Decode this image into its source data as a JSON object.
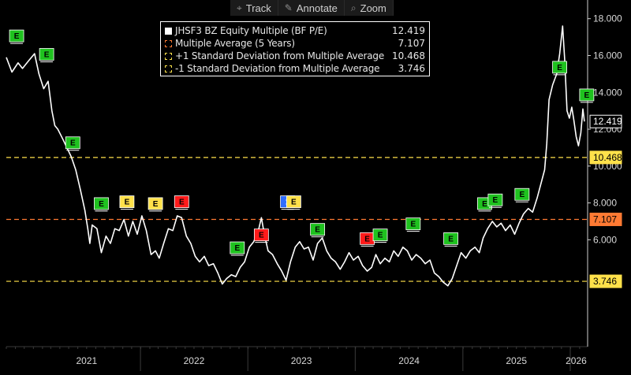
{
  "toolbar": {
    "track_label": "Track",
    "annotate_label": "Annotate",
    "zoom_label": "Zoom",
    "track_icon": "crosshair-icon",
    "annotate_icon": "pencil-icon",
    "zoom_icon": "magnifier-icon"
  },
  "legend": {
    "entries": [
      {
        "label": "JHSF3 BZ Equity Multiple (BF P/E)",
        "value": "12.419",
        "color": "#ffffff",
        "style": "filled"
      },
      {
        "label": "Multiple Average (5 Years)",
        "value": "7.107",
        "color": "#ff7a33",
        "style": "outline"
      },
      {
        "label": "+1 Standard Deviation from Multiple Average",
        "value": "10.468",
        "color": "#ffe14a",
        "style": "outline"
      },
      {
        "label": "-1 Standard Deviation from Multiple Average",
        "value": "3.746",
        "color": "#ffe14a",
        "style": "outline"
      }
    ]
  },
  "chart_data": {
    "type": "line",
    "x_start": "2020-10-01",
    "x_end": "2026-02-28",
    "ylim": [
      0.2,
      18.8
    ],
    "ytick_values": [
      6,
      8,
      10,
      12,
      14,
      16,
      18
    ],
    "ytick_labels": [
      "6.000",
      "8.000",
      "10.000",
      "12.000",
      "14.000",
      "16.000",
      "18.000"
    ],
    "x_labels": [
      {
        "label": "2021",
        "date": "2021-07-01"
      },
      {
        "label": "2022",
        "date": "2022-07-01"
      },
      {
        "label": "2023",
        "date": "2023-07-01"
      },
      {
        "label": "2024",
        "date": "2024-07-01"
      },
      {
        "label": "2025",
        "date": "2025-07-01"
      },
      {
        "label": "2026",
        "date": "2026-01-20"
      }
    ],
    "year_separators": [
      "2021-12-31",
      "2022-12-31",
      "2023-12-31",
      "2024-12-31",
      "2025-12-31"
    ],
    "series": [
      {
        "name": "JHSF3 BZ Equity Multiple (BF P/E)",
        "color": "#ffffff",
        "points": [
          [
            "2020-10-01",
            15.9
          ],
          [
            "2020-10-20",
            15.1
          ],
          [
            "2020-11-10",
            15.6
          ],
          [
            "2020-11-25",
            15.3
          ],
          [
            "2020-12-15",
            15.7
          ],
          [
            "2021-01-05",
            16.1
          ],
          [
            "2021-01-20",
            15.0
          ],
          [
            "2021-02-05",
            14.2
          ],
          [
            "2021-02-20",
            14.6
          ],
          [
            "2021-03-05",
            13.0
          ],
          [
            "2021-03-15",
            12.2
          ],
          [
            "2021-03-25",
            12.0
          ],
          [
            "2021-04-10",
            11.5
          ],
          [
            "2021-04-25",
            11.0
          ],
          [
            "2021-05-10",
            10.5
          ],
          [
            "2021-05-25",
            9.8
          ],
          [
            "2021-06-10",
            8.7
          ],
          [
            "2021-06-25",
            7.6
          ],
          [
            "2021-07-05",
            6.6
          ],
          [
            "2021-07-12",
            5.8
          ],
          [
            "2021-07-20",
            6.8
          ],
          [
            "2021-08-05",
            6.6
          ],
          [
            "2021-08-20",
            5.3
          ],
          [
            "2021-09-05",
            6.2
          ],
          [
            "2021-09-20",
            5.8
          ],
          [
            "2021-10-05",
            6.6
          ],
          [
            "2021-10-20",
            6.5
          ],
          [
            "2021-11-05",
            7.1
          ],
          [
            "2021-11-20",
            6.2
          ],
          [
            "2021-12-05",
            7.0
          ],
          [
            "2021-12-20",
            6.3
          ],
          [
            "2022-01-05",
            7.3
          ],
          [
            "2022-01-20",
            6.5
          ],
          [
            "2022-02-05",
            5.2
          ],
          [
            "2022-02-20",
            5.4
          ],
          [
            "2022-03-05",
            5.0
          ],
          [
            "2022-03-20",
            5.8
          ],
          [
            "2022-04-05",
            6.6
          ],
          [
            "2022-04-20",
            6.5
          ],
          [
            "2022-05-05",
            7.3
          ],
          [
            "2022-05-20",
            7.2
          ],
          [
            "2022-06-05",
            6.2
          ],
          [
            "2022-06-20",
            5.8
          ],
          [
            "2022-07-05",
            5.1
          ],
          [
            "2022-07-20",
            4.8
          ],
          [
            "2022-08-05",
            5.1
          ],
          [
            "2022-08-20",
            4.6
          ],
          [
            "2022-09-05",
            4.7
          ],
          [
            "2022-09-20",
            4.2
          ],
          [
            "2022-10-05",
            3.6
          ],
          [
            "2022-10-20",
            3.9
          ],
          [
            "2022-11-05",
            4.1
          ],
          [
            "2022-11-20",
            4.0
          ],
          [
            "2022-12-05",
            4.5
          ],
          [
            "2022-12-20",
            4.8
          ],
          [
            "2023-01-05",
            5.6
          ],
          [
            "2023-01-20",
            5.9
          ],
          [
            "2023-02-05",
            6.5
          ],
          [
            "2023-02-15",
            7.2
          ],
          [
            "2023-02-25",
            6.3
          ],
          [
            "2023-03-10",
            5.4
          ],
          [
            "2023-03-25",
            5.2
          ],
          [
            "2023-04-10",
            4.7
          ],
          [
            "2023-04-25",
            4.3
          ],
          [
            "2023-05-10",
            3.8
          ],
          [
            "2023-05-25",
            4.8
          ],
          [
            "2023-06-10",
            5.6
          ],
          [
            "2023-06-25",
            5.9
          ],
          [
            "2023-07-10",
            5.5
          ],
          [
            "2023-07-25",
            5.6
          ],
          [
            "2023-08-10",
            4.9
          ],
          [
            "2023-08-25",
            5.8
          ],
          [
            "2023-09-10",
            6.1
          ],
          [
            "2023-09-25",
            5.4
          ],
          [
            "2023-10-10",
            5.0
          ],
          [
            "2023-10-25",
            4.8
          ],
          [
            "2023-11-10",
            4.4
          ],
          [
            "2023-11-25",
            4.8
          ],
          [
            "2023-12-10",
            5.3
          ],
          [
            "2023-12-25",
            4.9
          ],
          [
            "2024-01-10",
            5.1
          ],
          [
            "2024-01-25",
            4.6
          ],
          [
            "2024-02-10",
            4.3
          ],
          [
            "2024-02-25",
            4.5
          ],
          [
            "2024-03-10",
            5.2
          ],
          [
            "2024-03-25",
            4.7
          ],
          [
            "2024-04-10",
            5.0
          ],
          [
            "2024-04-25",
            4.8
          ],
          [
            "2024-05-10",
            5.4
          ],
          [
            "2024-05-25",
            5.1
          ],
          [
            "2024-06-10",
            5.6
          ],
          [
            "2024-06-25",
            5.4
          ],
          [
            "2024-07-10",
            4.9
          ],
          [
            "2024-07-25",
            5.2
          ],
          [
            "2024-08-10",
            5.0
          ],
          [
            "2024-08-25",
            4.7
          ],
          [
            "2024-09-10",
            4.9
          ],
          [
            "2024-09-25",
            4.2
          ],
          [
            "2024-10-10",
            4.0
          ],
          [
            "2024-10-25",
            3.7
          ],
          [
            "2024-11-10",
            3.5
          ],
          [
            "2024-11-25",
            3.9
          ],
          [
            "2024-12-10",
            4.6
          ],
          [
            "2024-12-25",
            5.3
          ],
          [
            "2025-01-10",
            5.0
          ],
          [
            "2025-01-25",
            5.4
          ],
          [
            "2025-02-10",
            5.6
          ],
          [
            "2025-02-25",
            5.3
          ],
          [
            "2025-03-10",
            6.1
          ],
          [
            "2025-03-25",
            6.6
          ],
          [
            "2025-04-10",
            7.0
          ],
          [
            "2025-04-25",
            6.7
          ],
          [
            "2025-05-10",
            6.9
          ],
          [
            "2025-05-25",
            6.5
          ],
          [
            "2025-06-10",
            6.8
          ],
          [
            "2025-06-25",
            6.3
          ],
          [
            "2025-07-10",
            6.9
          ],
          [
            "2025-07-25",
            7.4
          ],
          [
            "2025-08-10",
            7.7
          ],
          [
            "2025-08-25",
            7.5
          ],
          [
            "2025-09-10",
            8.3
          ],
          [
            "2025-09-25",
            9.2
          ],
          [
            "2025-10-05",
            9.8
          ],
          [
            "2025-10-12",
            11.2
          ],
          [
            "2025-10-20",
            13.6
          ],
          [
            "2025-11-01",
            14.4
          ],
          [
            "2025-11-15",
            15.0
          ],
          [
            "2025-11-25",
            16.1
          ],
          [
            "2025-12-05",
            17.6
          ],
          [
            "2025-12-12",
            15.8
          ],
          [
            "2025-12-20",
            13.0
          ],
          [
            "2025-12-28",
            12.6
          ],
          [
            "2026-01-05",
            13.2
          ],
          [
            "2026-01-12",
            12.5
          ],
          [
            "2026-01-20",
            11.6
          ],
          [
            "2026-01-28",
            11.1
          ],
          [
            "2026-02-05",
            11.8
          ],
          [
            "2026-02-12",
            13.1
          ],
          [
            "2026-02-17",
            12.419
          ]
        ]
      },
      {
        "name": "Multiple Average (5 Years)",
        "value": 7.107,
        "color": "#ff7a33",
        "style": "dashed"
      },
      {
        "name": "+1 Standard Deviation from Multiple Average",
        "value": 10.468,
        "color": "#ffe14a",
        "style": "dashed"
      },
      {
        "name": "-1 Standard Deviation from Multiple Average",
        "value": 3.746,
        "color": "#ffe14a",
        "style": "dashed"
      }
    ],
    "value_tags": [
      {
        "value": 12.419,
        "label": "12.419",
        "bg": "#000000",
        "fg": "#ffffff",
        "border": "#ffffff"
      },
      {
        "value": 10.468,
        "label": "10.468",
        "bg": "#ffe14a",
        "fg": "#000000",
        "border": "#ffe14a"
      },
      {
        "value": 7.107,
        "label": "7.107",
        "bg": "#ff7a33",
        "fg": "#000000",
        "border": "#ff7a33"
      },
      {
        "value": 3.746,
        "label": "3.746",
        "bg": "#ffe14a",
        "fg": "#000000",
        "border": "#ffe14a"
      }
    ],
    "earnings_markers": [
      {
        "date": "2020-11-05",
        "value": 17.0,
        "label": "E",
        "color": "#1fc21f"
      },
      {
        "date": "2021-02-15",
        "value": 16.0,
        "label": "E",
        "color": "#1fc21f"
      },
      {
        "date": "2021-05-15",
        "value": 11.2,
        "label": "E",
        "color": "#1fc21f"
      },
      {
        "date": "2021-08-20",
        "value": 7.9,
        "label": "E",
        "color": "#1fc21f"
      },
      {
        "date": "2021-11-15",
        "value": 8.0,
        "label": "E",
        "color": "#ffe14a"
      },
      {
        "date": "2022-02-20",
        "value": 7.9,
        "label": "E",
        "color": "#ffe14a"
      },
      {
        "date": "2022-05-20",
        "value": 8.0,
        "label": "E",
        "color": "#ff1a1a"
      },
      {
        "date": "2022-11-25",
        "value": 5.5,
        "label": "E",
        "color": "#1fc21f"
      },
      {
        "date": "2023-02-15",
        "value": 6.2,
        "label": "E",
        "color": "#ff1a1a"
      },
      {
        "date": "2023-05-15",
        "value": 8.0,
        "label": "1",
        "color": "#2f6dff"
      },
      {
        "date": "2023-06-05",
        "value": 8.0,
        "label": "E",
        "color": "#ffe14a"
      },
      {
        "date": "2023-08-25",
        "value": 6.5,
        "label": "E",
        "color": "#1fc21f"
      },
      {
        "date": "2024-02-10",
        "value": 6.0,
        "label": "E",
        "color": "#ff1a1a"
      },
      {
        "date": "2024-03-25",
        "value": 6.2,
        "label": "E",
        "color": "#1fc21f"
      },
      {
        "date": "2024-07-15",
        "value": 6.8,
        "label": "E",
        "color": "#1fc21f"
      },
      {
        "date": "2024-11-20",
        "value": 6.0,
        "label": "E",
        "color": "#1fc21f"
      },
      {
        "date": "2025-03-15",
        "value": 7.9,
        "label": "E",
        "color": "#1fc21f"
      },
      {
        "date": "2025-04-20",
        "value": 8.1,
        "label": "E",
        "color": "#1fc21f"
      },
      {
        "date": "2025-07-20",
        "value": 8.4,
        "label": "E",
        "color": "#1fc21f"
      },
      {
        "date": "2025-11-25",
        "value": 15.3,
        "label": "E",
        "color": "#1fc21f"
      },
      {
        "date": "2026-02-25",
        "value": 13.8,
        "label": "E",
        "color": "#1fc21f"
      }
    ]
  }
}
